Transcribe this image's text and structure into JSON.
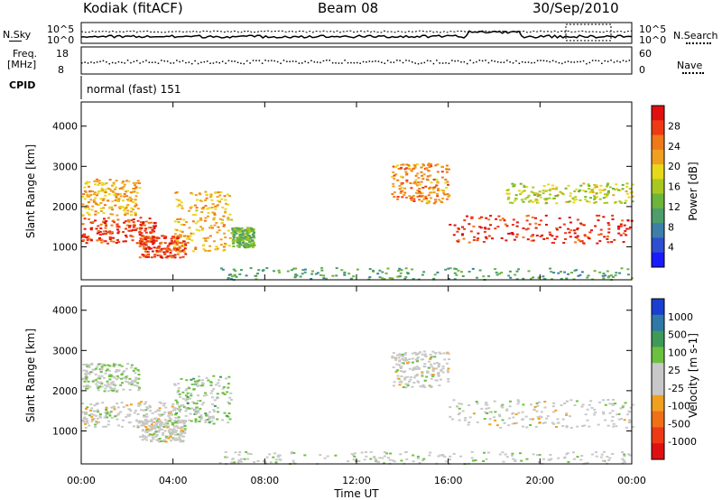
{
  "header": {
    "station": "Kodiak (fitACF)",
    "beam": "Beam 08",
    "date": "30/Sep/2010"
  },
  "noise_panel": {
    "left_label": "N.Sky",
    "right_label": "N.Search",
    "left_ticks": [
      "10^5",
      "10^0"
    ],
    "right_ticks": [
      "10^5",
      "10^0"
    ]
  },
  "freq_panel": {
    "left_label_1": "Freq.",
    "left_label_2": "[MHz]",
    "right_label": "Nave",
    "left_ticks": [
      "18",
      "8"
    ],
    "right_ticks": [
      "60",
      "0"
    ]
  },
  "cpid_panel": {
    "label": "CPID",
    "mode": "normal (fast) 151"
  },
  "power_panel": {
    "ylabel": "Slant Range [km]",
    "yticks": [
      "4000",
      "3000",
      "2000",
      "1000"
    ],
    "colorbar_label": "Power [dB]",
    "colorbar_ticks": [
      "28",
      "24",
      "20",
      "16",
      "12",
      "8",
      "4"
    ],
    "colors": [
      "#1a1aff",
      "#2e4fcf",
      "#3d7fa8",
      "#4d9e6b",
      "#6cb43a",
      "#a8c820",
      "#e8d81a",
      "#f0a020",
      "#f07818",
      "#ee3a14",
      "#e01010"
    ]
  },
  "velocity_panel": {
    "ylabel": "Slant Range [km]",
    "yticks": [
      "4000",
      "3000",
      "2000",
      "1000"
    ],
    "colorbar_label": "Velocity [m s-1]",
    "colorbar_ticks": [
      "1000",
      "500",
      "100",
      "25",
      "-25",
      "-100",
      "-500",
      "-1000"
    ],
    "colors": [
      "#1a3fd0",
      "#2f78a8",
      "#3f9a58",
      "#6cc040",
      "#c8c8c8",
      "#c8c8c8",
      "#f0a020",
      "#f07018",
      "#ee3a14",
      "#e01010"
    ]
  },
  "x_axis": {
    "label": "Time UT",
    "ticks": [
      "00:00",
      "04:00",
      "08:00",
      "12:00",
      "16:00",
      "20:00",
      "00:00"
    ]
  },
  "chart_data": [
    {
      "type": "heatmap",
      "title": "Power",
      "x_unit": "hours UT",
      "xlim": [
        0,
        24
      ],
      "ylabel": "Slant Range [km]",
      "ylim": [
        180,
        4600
      ],
      "colorbar": {
        "label": "Power [dB]",
        "range": [
          0,
          30
        ]
      },
      "features": [
        {
          "x_start": 0.0,
          "x_end": 3.2,
          "y_low": 1100,
          "y_high": 1750,
          "value": 26
        },
        {
          "x_start": 0.0,
          "x_end": 2.5,
          "y_low": 1800,
          "y_high": 2700,
          "value": 20
        },
        {
          "x_start": 2.5,
          "x_end": 4.5,
          "y_low": 750,
          "y_high": 1300,
          "value": 26
        },
        {
          "x_start": 4.0,
          "x_end": 6.5,
          "y_low": 900,
          "y_high": 2400,
          "value": 20
        },
        {
          "x_start": 6.5,
          "x_end": 7.5,
          "y_low": 1000,
          "y_high": 1500,
          "value": 12
        },
        {
          "x_start": 13.5,
          "x_end": 16.0,
          "y_low": 2100,
          "y_high": 3100,
          "value": 22
        },
        {
          "x_start": 16.0,
          "x_end": 24.0,
          "y_low": 1100,
          "y_high": 1800,
          "value": 27
        },
        {
          "x_start": 18.5,
          "x_end": 24.0,
          "y_low": 2100,
          "y_high": 2600,
          "value": 16
        },
        {
          "x_start": 6.0,
          "x_end": 24.0,
          "y_low": 200,
          "y_high": 500,
          "value": 10
        }
      ]
    },
    {
      "type": "heatmap",
      "title": "Velocity",
      "x_unit": "hours UT",
      "xlim": [
        0,
        24
      ],
      "ylabel": "Slant Range [km]",
      "ylim": [
        180,
        4600
      ],
      "colorbar": {
        "label": "Velocity [m s-1]",
        "range": [
          -1000,
          1000
        ]
      },
      "features": [
        {
          "x_start": 0.0,
          "x_end": 4.0,
          "y_low": 1100,
          "y_high": 1750,
          "value": 0
        },
        {
          "x_start": 0.0,
          "x_end": 2.5,
          "y_low": 2000,
          "y_high": 2700,
          "value": 120
        },
        {
          "x_start": 2.5,
          "x_end": 4.5,
          "y_low": 750,
          "y_high": 1300,
          "value": 0
        },
        {
          "x_start": 4.0,
          "x_end": 6.5,
          "y_low": 1200,
          "y_high": 2400,
          "value": 200
        },
        {
          "x_start": 13.5,
          "x_end": 16.0,
          "y_low": 2100,
          "y_high": 3000,
          "value": 0
        },
        {
          "x_start": 16.0,
          "x_end": 24.0,
          "y_low": 1100,
          "y_high": 1800,
          "value": 0
        },
        {
          "x_start": 6.0,
          "x_end": 24.0,
          "y_low": 200,
          "y_high": 500,
          "value": 50
        }
      ]
    }
  ]
}
